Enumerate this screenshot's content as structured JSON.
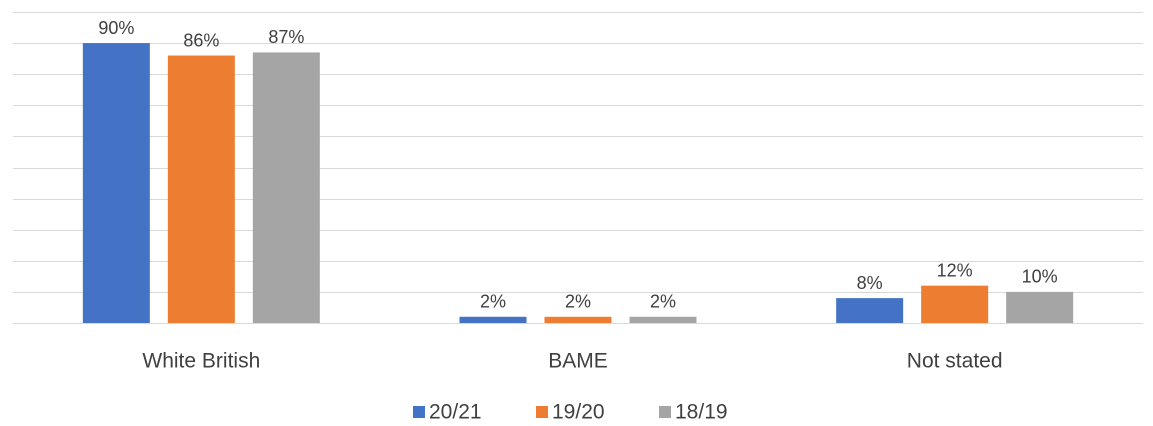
{
  "chart_data": {
    "type": "bar",
    "categories": [
      "White British",
      "BAME",
      "Not stated"
    ],
    "series": [
      {
        "name": "20/21",
        "color": "#4472c4",
        "values": [
          90,
          2,
          8
        ],
        "value_labels": [
          "90%",
          "2%",
          "8%"
        ]
      },
      {
        "name": "19/20",
        "color": "#ed7d31",
        "values": [
          86,
          2,
          12
        ],
        "value_labels": [
          "86%",
          "2%",
          "12%"
        ]
      },
      {
        "name": "18/19",
        "color": "#a5a5a5",
        "values": [
          87,
          2,
          10
        ],
        "value_labels": [
          "87%",
          "2%",
          "10%"
        ]
      }
    ],
    "ylim": [
      0,
      100
    ],
    "yticks": [
      0,
      10,
      20,
      30,
      40,
      50,
      60,
      70,
      80,
      90,
      100
    ],
    "grid": true,
    "legend": "bottom"
  }
}
